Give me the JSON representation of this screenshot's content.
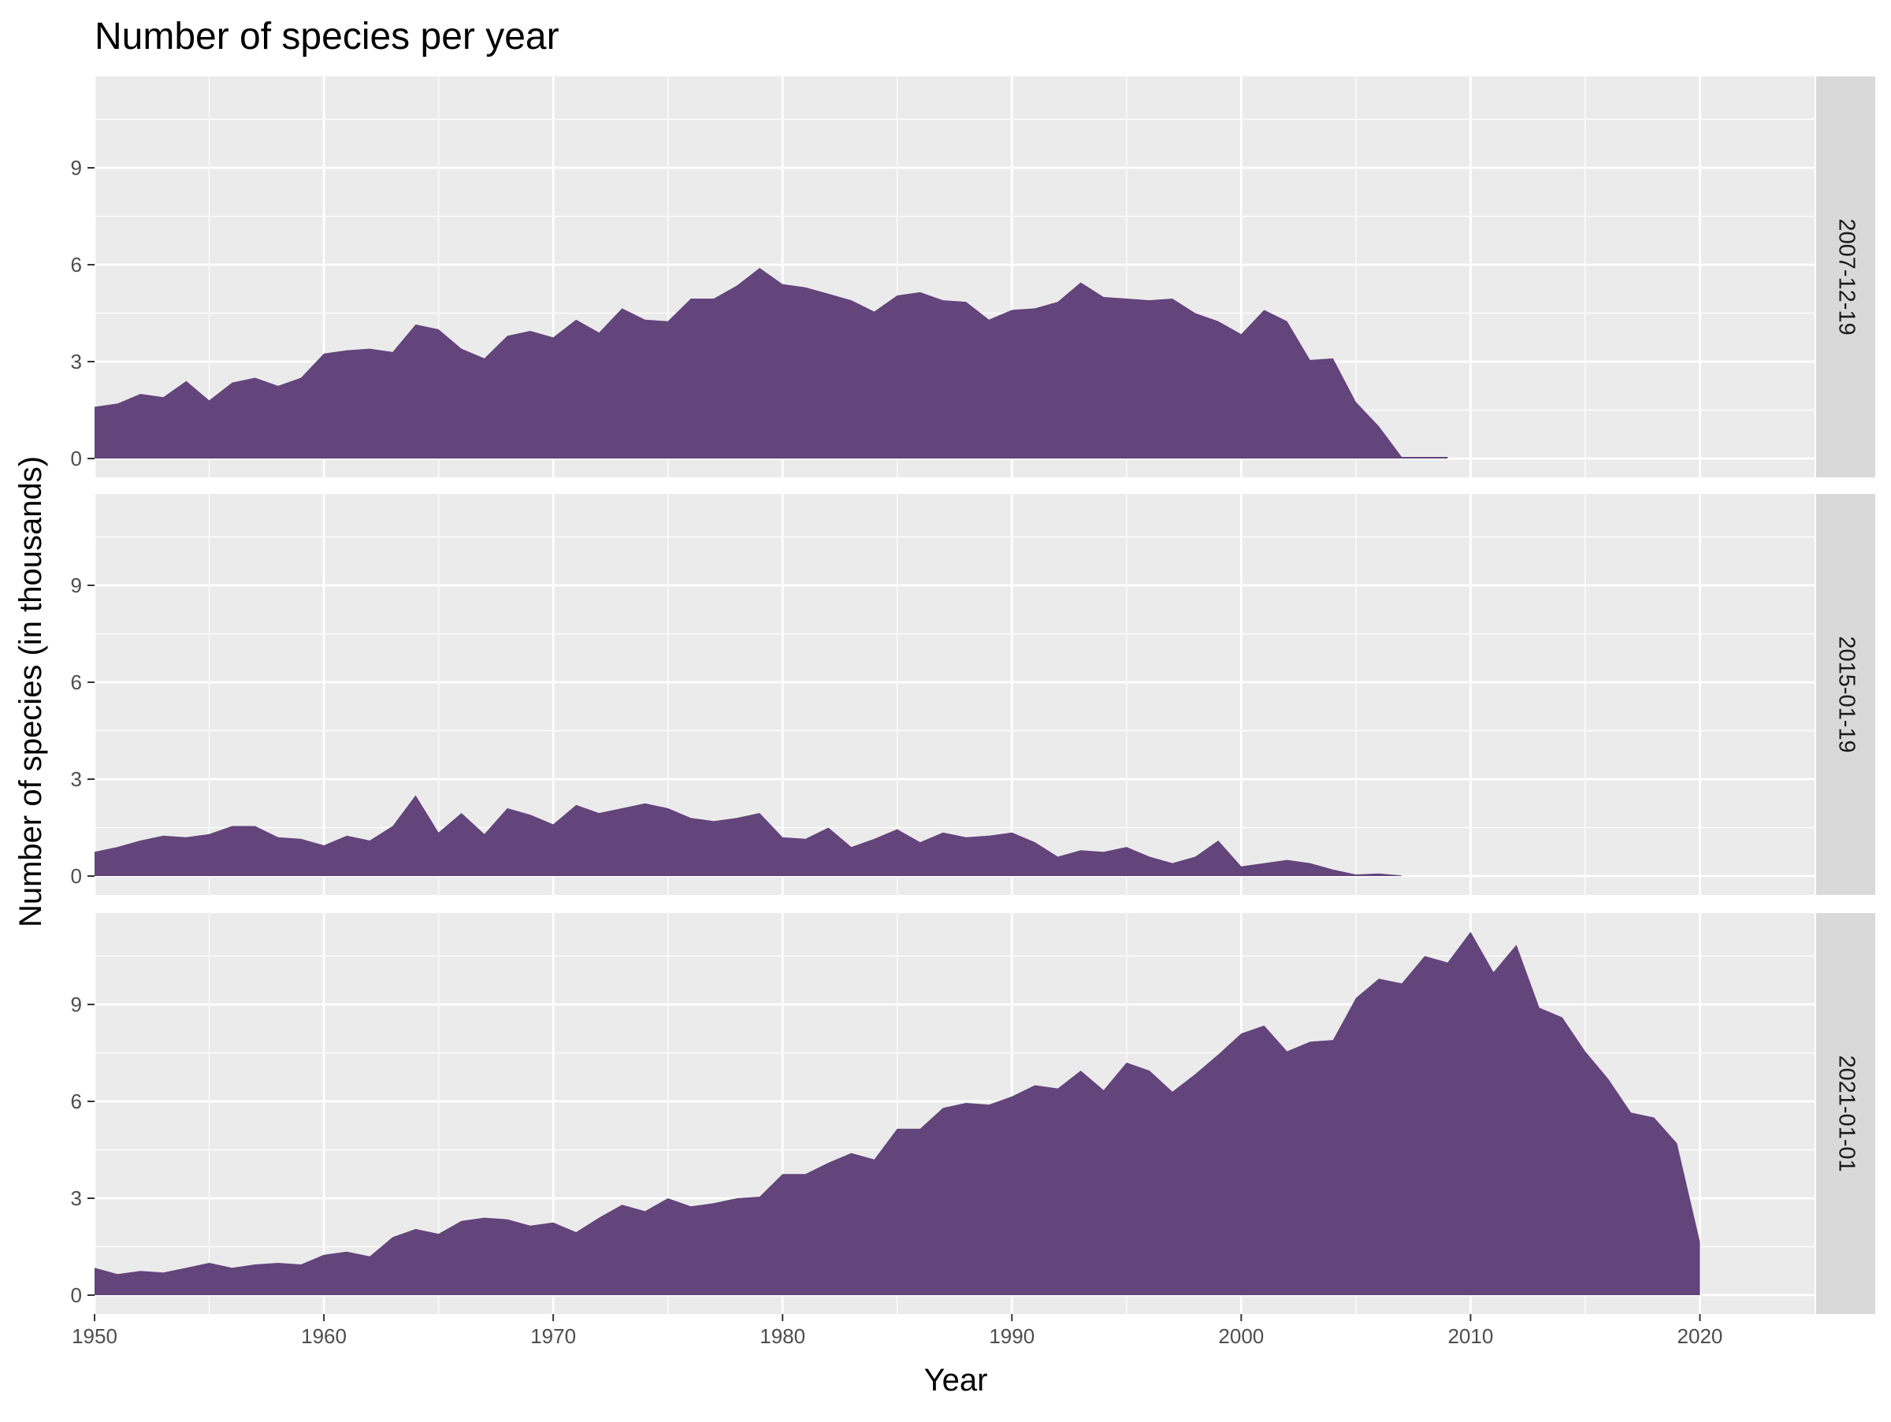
{
  "chart_data": {
    "type": "area",
    "title": "Number of species per year",
    "xlabel": "Year",
    "ylabel": "Number of species (in thousands)",
    "xlim": [
      1950,
      2025
    ],
    "ylim": [
      0,
      11.7
    ],
    "x_ticks": [
      1950,
      1960,
      1970,
      1980,
      1990,
      2000,
      2010,
      2020
    ],
    "y_ticks": [
      0,
      3,
      6,
      9
    ],
    "fill_color": "#5c3b75",
    "panel_background": "#ebebeb",
    "strip_background": "#d9d9d9",
    "grid_color": "#ffffff",
    "grid": true,
    "facets": [
      {
        "label": "2007-12-19",
        "series": [
          [
            1950,
            1.6
          ],
          [
            1951,
            1.7
          ],
          [
            1952,
            2.0
          ],
          [
            1953,
            1.9
          ],
          [
            1954,
            2.4
          ],
          [
            1955,
            1.8
          ],
          [
            1956,
            2.35
          ],
          [
            1957,
            2.5
          ],
          [
            1958,
            2.25
          ],
          [
            1959,
            2.5
          ],
          [
            1960,
            3.25
          ],
          [
            1961,
            3.35
          ],
          [
            1962,
            3.4
          ],
          [
            1963,
            3.3
          ],
          [
            1964,
            4.15
          ],
          [
            1965,
            4.0
          ],
          [
            1966,
            3.4
          ],
          [
            1967,
            3.1
          ],
          [
            1968,
            3.8
          ],
          [
            1969,
            3.95
          ],
          [
            1970,
            3.75
          ],
          [
            1971,
            4.3
          ],
          [
            1972,
            3.9
          ],
          [
            1973,
            4.65
          ],
          [
            1974,
            4.3
          ],
          [
            1975,
            4.25
          ],
          [
            1976,
            4.95
          ],
          [
            1977,
            4.95
          ],
          [
            1978,
            5.35
          ],
          [
            1979,
            5.9
          ],
          [
            1980,
            5.4
          ],
          [
            1981,
            5.3
          ],
          [
            1982,
            5.1
          ],
          [
            1983,
            4.9
          ],
          [
            1984,
            4.55
          ],
          [
            1985,
            5.05
          ],
          [
            1986,
            5.15
          ],
          [
            1987,
            4.9
          ],
          [
            1988,
            4.85
          ],
          [
            1989,
            4.3
          ],
          [
            1990,
            4.6
          ],
          [
            1991,
            4.65
          ],
          [
            1992,
            4.85
          ],
          [
            1993,
            5.45
          ],
          [
            1994,
            5.0
          ],
          [
            1995,
            4.95
          ],
          [
            1996,
            4.9
          ],
          [
            1997,
            4.95
          ],
          [
            1998,
            4.5
          ],
          [
            1999,
            4.25
          ],
          [
            2000,
            3.85
          ],
          [
            2001,
            4.6
          ],
          [
            2002,
            4.25
          ],
          [
            2003,
            3.05
          ],
          [
            2004,
            3.1
          ],
          [
            2005,
            1.75
          ],
          [
            2006,
            1.0
          ],
          [
            2007,
            0.05
          ],
          [
            2008,
            0.05
          ],
          [
            2009,
            0.05
          ]
        ]
      },
      {
        "label": "2015-01-19",
        "series": [
          [
            1950,
            0.75
          ],
          [
            1951,
            0.9
          ],
          [
            1952,
            1.1
          ],
          [
            1953,
            1.25
          ],
          [
            1954,
            1.2
          ],
          [
            1955,
            1.3
          ],
          [
            1956,
            1.55
          ],
          [
            1957,
            1.55
          ],
          [
            1958,
            1.2
          ],
          [
            1959,
            1.15
          ],
          [
            1960,
            0.95
          ],
          [
            1961,
            1.25
          ],
          [
            1962,
            1.1
          ],
          [
            1963,
            1.55
          ],
          [
            1964,
            2.5
          ],
          [
            1965,
            1.35
          ],
          [
            1966,
            1.95
          ],
          [
            1967,
            1.3
          ],
          [
            1968,
            2.1
          ],
          [
            1969,
            1.9
          ],
          [
            1970,
            1.6
          ],
          [
            1971,
            2.2
          ],
          [
            1972,
            1.95
          ],
          [
            1973,
            2.1
          ],
          [
            1974,
            2.25
          ],
          [
            1975,
            2.1
          ],
          [
            1976,
            1.8
          ],
          [
            1977,
            1.7
          ],
          [
            1978,
            1.8
          ],
          [
            1979,
            1.95
          ],
          [
            1980,
            1.2
          ],
          [
            1981,
            1.15
          ],
          [
            1982,
            1.5
          ],
          [
            1983,
            0.9
          ],
          [
            1984,
            1.15
          ],
          [
            1985,
            1.45
          ],
          [
            1986,
            1.05
          ],
          [
            1987,
            1.35
          ],
          [
            1988,
            1.2
          ],
          [
            1989,
            1.25
          ],
          [
            1990,
            1.35
          ],
          [
            1991,
            1.05
          ],
          [
            1992,
            0.6
          ],
          [
            1993,
            0.8
          ],
          [
            1994,
            0.75
          ],
          [
            1995,
            0.9
          ],
          [
            1996,
            0.6
          ],
          [
            1997,
            0.4
          ],
          [
            1998,
            0.6
          ],
          [
            1999,
            1.1
          ],
          [
            2000,
            0.3
          ],
          [
            2001,
            0.4
          ],
          [
            2002,
            0.5
          ],
          [
            2003,
            0.4
          ],
          [
            2004,
            0.2
          ],
          [
            2005,
            0.05
          ],
          [
            2006,
            0.08
          ],
          [
            2007,
            0.02
          ]
        ]
      },
      {
        "label": "2021-01-01",
        "series": [
          [
            1950,
            0.85
          ],
          [
            1951,
            0.65
          ],
          [
            1952,
            0.75
          ],
          [
            1953,
            0.7
          ],
          [
            1954,
            0.85
          ],
          [
            1955,
            1.0
          ],
          [
            1956,
            0.85
          ],
          [
            1957,
            0.95
          ],
          [
            1958,
            1.0
          ],
          [
            1959,
            0.95
          ],
          [
            1960,
            1.25
          ],
          [
            1961,
            1.35
          ],
          [
            1962,
            1.2
          ],
          [
            1963,
            1.8
          ],
          [
            1964,
            2.05
          ],
          [
            1965,
            1.9
          ],
          [
            1966,
            2.3
          ],
          [
            1967,
            2.4
          ],
          [
            1968,
            2.35
          ],
          [
            1969,
            2.15
          ],
          [
            1970,
            2.25
          ],
          [
            1971,
            1.95
          ],
          [
            1972,
            2.4
          ],
          [
            1973,
            2.8
          ],
          [
            1974,
            2.6
          ],
          [
            1975,
            3.0
          ],
          [
            1976,
            2.75
          ],
          [
            1977,
            2.85
          ],
          [
            1978,
            3.0
          ],
          [
            1979,
            3.05
          ],
          [
            1980,
            3.75
          ],
          [
            1981,
            3.75
          ],
          [
            1982,
            4.1
          ],
          [
            1983,
            4.4
          ],
          [
            1984,
            4.2
          ],
          [
            1985,
            5.15
          ],
          [
            1986,
            5.15
          ],
          [
            1987,
            5.8
          ],
          [
            1988,
            5.95
          ],
          [
            1989,
            5.9
          ],
          [
            1990,
            6.15
          ],
          [
            1991,
            6.5
          ],
          [
            1992,
            6.4
          ],
          [
            1993,
            6.95
          ],
          [
            1994,
            6.35
          ],
          [
            1995,
            7.2
          ],
          [
            1996,
            6.95
          ],
          [
            1997,
            6.3
          ],
          [
            1998,
            6.85
          ],
          [
            1999,
            7.45
          ],
          [
            2000,
            8.1
          ],
          [
            2001,
            8.35
          ],
          [
            2002,
            7.55
          ],
          [
            2003,
            7.85
          ],
          [
            2004,
            7.9
          ],
          [
            2005,
            9.2
          ],
          [
            2006,
            9.8
          ],
          [
            2007,
            9.65
          ],
          [
            2008,
            10.5
          ],
          [
            2009,
            10.3
          ],
          [
            2010,
            11.25
          ],
          [
            2011,
            10.0
          ],
          [
            2012,
            10.85
          ],
          [
            2013,
            8.9
          ],
          [
            2014,
            8.6
          ],
          [
            2015,
            7.55
          ],
          [
            2016,
            6.7
          ],
          [
            2017,
            5.65
          ],
          [
            2018,
            5.5
          ],
          [
            2019,
            4.7
          ],
          [
            2020,
            1.65
          ]
        ]
      }
    ]
  }
}
